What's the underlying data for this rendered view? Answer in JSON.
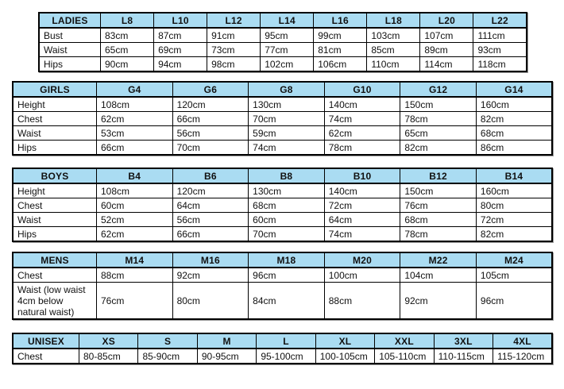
{
  "colors": {
    "header_bg": "#aadcf2",
    "border": "#000000",
    "text": "#111111",
    "background": "#ffffff"
  },
  "tables": [
    {
      "id": "ladies",
      "header": [
        "LADIES",
        "L8",
        "L10",
        "L12",
        "L14",
        "L16",
        "L18",
        "L20",
        "L22"
      ],
      "rows": [
        {
          "label": "Bust",
          "values": [
            "83cm",
            "87cm",
            "91cm",
            "95cm",
            "99cm",
            "103cm",
            "107cm",
            "111cm"
          ]
        },
        {
          "label": "Waist",
          "values": [
            "65cm",
            "69cm",
            "73cm",
            "77cm",
            "81cm",
            "85cm",
            "89cm",
            "93cm"
          ]
        },
        {
          "label": "Hips",
          "values": [
            "90cm",
            "94cm",
            "98cm",
            "102cm",
            "106cm",
            "110cm",
            "114cm",
            "118cm"
          ]
        }
      ]
    },
    {
      "id": "girls",
      "header": [
        "GIRLS",
        "G4",
        "G6",
        "G8",
        "G10",
        "G12",
        "G14"
      ],
      "rows": [
        {
          "label": "Height",
          "values": [
            "108cm",
            "120cm",
            "130cm",
            "140cm",
            "150cm",
            "160cm"
          ]
        },
        {
          "label": "Chest",
          "values": [
            "62cm",
            "66cm",
            "70cm",
            "74cm",
            "78cm",
            "82cm"
          ]
        },
        {
          "label": "Waist",
          "values": [
            "53cm",
            "56cm",
            "59cm",
            "62cm",
            "65cm",
            "68cm"
          ]
        },
        {
          "label": "Hips",
          "values": [
            "66cm",
            "70cm",
            "74cm",
            "78cm",
            "82cm",
            "86cm"
          ]
        }
      ]
    },
    {
      "id": "boys",
      "header": [
        "BOYS",
        "B4",
        "B6",
        "B8",
        "B10",
        "B12",
        "B14"
      ],
      "rows": [
        {
          "label": "Height",
          "values": [
            "108cm",
            "120cm",
            "130cm",
            "140cm",
            "150cm",
            "160cm"
          ]
        },
        {
          "label": "Chest",
          "values": [
            "60cm",
            "64cm",
            "68cm",
            "72cm",
            "76cm",
            "80cm"
          ]
        },
        {
          "label": "Waist",
          "values": [
            "52cm",
            "56cm",
            "60cm",
            "64cm",
            "68cm",
            "72cm"
          ]
        },
        {
          "label": "Hips",
          "values": [
            "62cm",
            "66cm",
            "70cm",
            "74cm",
            "78cm",
            "82cm"
          ]
        }
      ]
    },
    {
      "id": "mens",
      "header": [
        "MENS",
        "M14",
        "M16",
        "M18",
        "M20",
        "M22",
        "M24"
      ],
      "rows": [
        {
          "label": "Chest",
          "values": [
            "88cm",
            "92cm",
            "96cm",
            "100cm",
            "104cm",
            "105cm"
          ]
        },
        {
          "label": "Waist (low waist 4cm below natural waist)",
          "values": [
            "76cm",
            "80cm",
            "84cm",
            "88cm",
            "92cm",
            "96cm"
          ]
        }
      ]
    },
    {
      "id": "unisex",
      "header": [
        "UNISEX",
        "XS",
        "S",
        "M",
        "L",
        "XL",
        "XXL",
        "3XL",
        "4XL"
      ],
      "rows": [
        {
          "label": "Chest",
          "values": [
            "80-85cm",
            "85-90cm",
            "90-95cm",
            "95-100cm",
            "100-105cm",
            "105-110cm",
            "110-115cm",
            "115-120cm"
          ]
        }
      ]
    }
  ]
}
